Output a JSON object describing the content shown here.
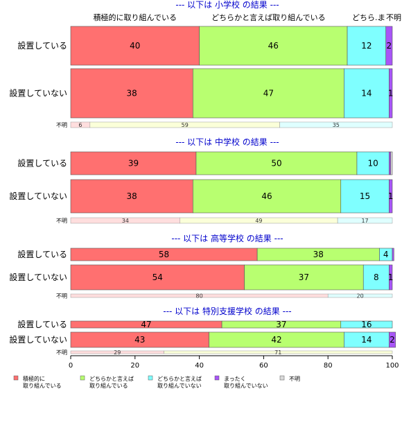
{
  "chart_data": {
    "type": "bar",
    "orientation": "horizontal-stacked-percent",
    "categories": [
      "積極的に取り組んでいる",
      "どちらかと言えば取り組んでいる",
      "どちらかと言えば取り組んでいない",
      "まったく取り組んでいない",
      "不明"
    ],
    "header_categories": [
      "積極的に取り組んでいる",
      "どちらかと言えば取り組んでいる",
      "どちら..",
      "まったく",
      "不明"
    ],
    "legend": [
      {
        "lines": [
          "積極的に",
          "取り組んでいる"
        ],
        "color": "#ff7070"
      },
      {
        "lines": [
          "どちらかと言えば",
          "取り組んでいる"
        ],
        "color": "#b8ff70"
      },
      {
        "lines": [
          "どちらかと言えば",
          "取り組んでいない"
        ],
        "color": "#7fffff"
      },
      {
        "lines": [
          "まったく",
          "取り組んでいない"
        ],
        "color": "#a855f7"
      },
      {
        "lines": [
          "不明"
        ],
        "color": "#d9d9d9"
      }
    ],
    "sections": [
      {
        "title": "--- 以下は 小学校 の結果 ---",
        "rows": [
          {
            "label": "設置している",
            "values": [
              40,
              46,
              12,
              2,
              0
            ],
            "labels": [
              "40",
              "46",
              "12",
              "2",
              ""
            ]
          },
          {
            "label": "設置していない",
            "values": [
              38,
              47,
              14,
              1,
              0
            ],
            "labels": [
              "38",
              "47",
              "14",
              "1",
              ""
            ]
          }
        ],
        "unknown": {
          "label": "不明",
          "values": [
            6,
            59,
            35
          ],
          "labels": [
            "6",
            "59",
            "35"
          ]
        }
      },
      {
        "title": "--- 以下は 中学校 の結果 ---",
        "rows": [
          {
            "label": "設置している",
            "values": [
              39,
              50,
              10,
              0.5,
              0.5
            ],
            "labels": [
              "39",
              "50",
              "10",
              "",
              ""
            ]
          },
          {
            "label": "設置していない",
            "values": [
              38,
              46,
              15,
              1,
              0
            ],
            "labels": [
              "38",
              "46",
              "15",
              "1",
              ""
            ]
          }
        ],
        "unknown": {
          "label": "不明",
          "values": [
            34,
            49,
            17
          ],
          "labels": [
            "34",
            "49",
            "17"
          ]
        }
      },
      {
        "title": "--- 以下は 高等学校 の結果 ---",
        "rows": [
          {
            "label": "設置している",
            "values": [
              58,
              38,
              4,
              0.5,
              0
            ],
            "labels": [
              "58",
              "38",
              "4",
              "",
              ""
            ]
          },
          {
            "label": "設置していない",
            "values": [
              54,
              37,
              8,
              1,
              0
            ],
            "labels": [
              "54",
              "37",
              "8",
              "1",
              ""
            ]
          }
        ],
        "unknown": {
          "label": "不明",
          "values": [
            80,
            0,
            20
          ],
          "labels": [
            "80",
            "",
            "20"
          ]
        }
      },
      {
        "title": "--- 以下は 特別支援学校 の結果 ---",
        "rows": [
          {
            "label": "設置している",
            "values": [
              47,
              37,
              16,
              0,
              0
            ],
            "labels": [
              "47",
              "37",
              "16",
              "",
              ""
            ]
          },
          {
            "label": "設置していない",
            "values": [
              43,
              42,
              14,
              2,
              0
            ],
            "labels": [
              "43",
              "42",
              "14",
              "2",
              ""
            ]
          }
        ],
        "unknown": {
          "label": "不明",
          "values": [
            29,
            71,
            0
          ],
          "labels": [
            "29",
            "71",
            ""
          ]
        }
      }
    ],
    "x_ticks": [
      0,
      20,
      40,
      60,
      80,
      100
    ],
    "xlim": [
      0,
      100
    ]
  }
}
